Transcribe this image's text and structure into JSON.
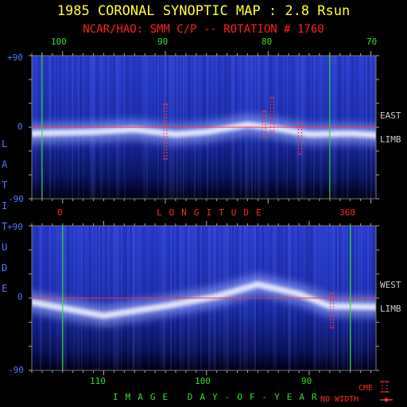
{
  "chart_data": {
    "type": "heatmap",
    "title": "1985 CORONAL SYNOPTIC MAP : 2.8 Rsun",
    "subtitle": "NCAR/HAO: SMM C/P -- ROTATION # 1760",
    "colors": {
      "title": "#ffff33",
      "subtitle": "#ff2020",
      "background": "#000000",
      "map": "#1b2fa8",
      "band": "#ffffff",
      "day_ticks": "#33dd33",
      "lat_ticks": "#5577ff",
      "equator": "#ff3030",
      "cme": "#ff3030"
    },
    "top_axis": {
      "labels": [
        "100",
        "90",
        "80",
        "70"
      ],
      "values": [
        100,
        90,
        80,
        70
      ]
    },
    "longitude_axis": {
      "label": "LONGITUDE",
      "labels": [
        "0",
        "360"
      ],
      "values": [
        0,
        360
      ]
    },
    "bottom_axis": {
      "label": "IMAGE DAY-OF-YEAR",
      "labels": [
        "110",
        "100",
        "90"
      ],
      "values": [
        110,
        100,
        90
      ]
    },
    "latitude_axis": {
      "label": "LATITUDE",
      "labels": [
        "+90",
        "0",
        "-90"
      ],
      "values": [
        90,
        0,
        -90
      ]
    },
    "panels": [
      {
        "limb": "EAST",
        "side_labels": [
          "EAST",
          "LIMB"
        ],
        "x_range_day": [
          103,
          69.5
        ],
        "streamer_belt": [
          [
            103,
            -8
          ],
          [
            97,
            -6
          ],
          [
            93,
            -3
          ],
          [
            89,
            -9
          ],
          [
            86,
            -6
          ],
          [
            82,
            3
          ],
          [
            79,
            -2
          ],
          [
            76,
            -9
          ],
          [
            72,
            -8
          ],
          [
            69.5,
            -10
          ]
        ],
        "cme_markers": [
          {
            "day": 90.0,
            "lat_top": 29,
            "lat_bottom": -40
          },
          {
            "day": 80.4,
            "lat_top": 20,
            "lat_bottom": -12
          },
          {
            "day": 79.6,
            "lat_top": 37,
            "lat_bottom": -6
          },
          {
            "day": 76.9,
            "lat_top": 6,
            "lat_bottom": -34
          }
        ],
        "green_lines_day": [
          102,
          74
        ]
      },
      {
        "limb": "WEST",
        "side_labels": [
          "WEST",
          "LIMB"
        ],
        "x_range_day": [
          117,
          83.5
        ],
        "streamer_belt": [
          [
            117,
            -5
          ],
          [
            110,
            -22
          ],
          [
            104,
            -10
          ],
          [
            99,
            2
          ],
          [
            95,
            17
          ],
          [
            91,
            5
          ],
          [
            88,
            -10
          ],
          [
            83.5,
            -11
          ]
        ],
        "cme_markers": [
          {
            "day": 87.8,
            "lat_top": 6,
            "lat_bottom": -37
          }
        ],
        "green_lines_day": [
          114,
          86
        ]
      }
    ],
    "legend": {
      "cme": "CME",
      "no_width": "NO WIDTH"
    }
  }
}
